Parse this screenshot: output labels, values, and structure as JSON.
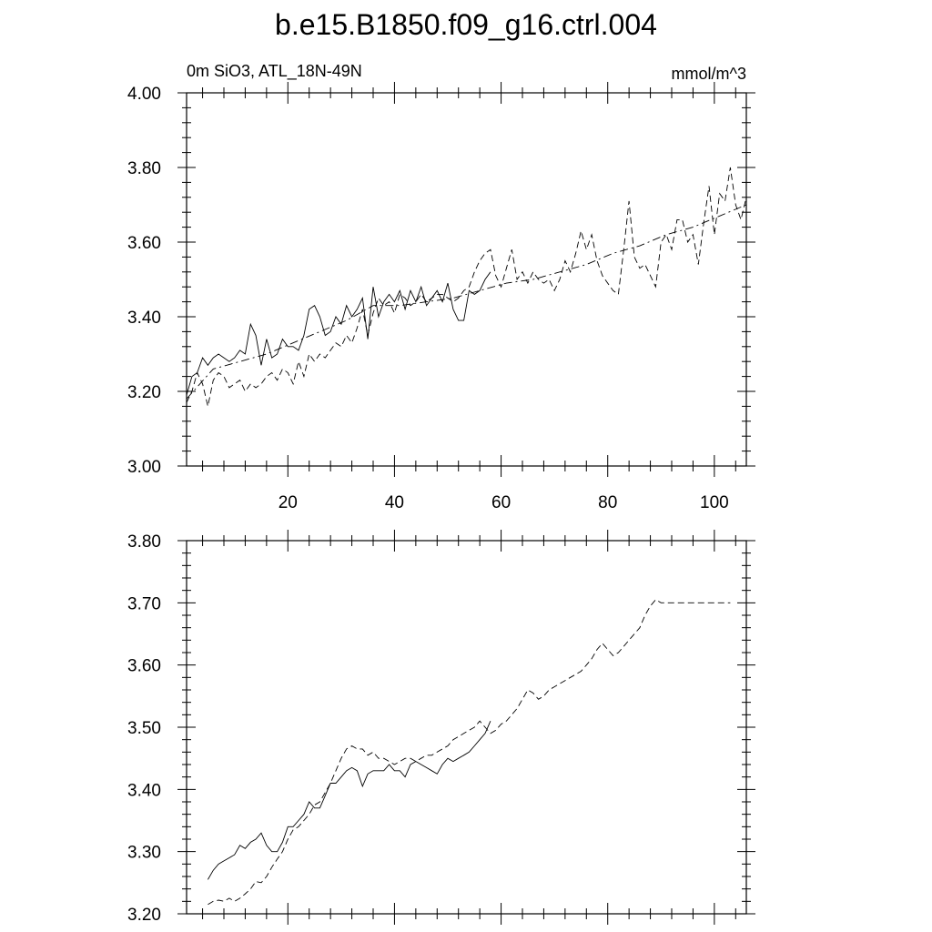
{
  "title": "b.e15.B1850.f09_g16.ctrl.004",
  "chart_data": [
    {
      "type": "line",
      "left_label": "0m SiO3, ATL_18N-49N",
      "right_label": "mmol/m^3",
      "xlim": [
        1,
        106
      ],
      "ylim": [
        3.0,
        4.0
      ],
      "x_ticks": [
        20,
        40,
        60,
        80,
        100
      ],
      "x_tick_labels": [
        "20",
        "40",
        "60",
        "80",
        "100"
      ],
      "y_ticks": [
        3.0,
        3.2,
        3.4,
        3.6,
        3.8,
        4.0
      ],
      "y_tick_labels": [
        "3.00",
        "3.20",
        "3.40",
        "3.60",
        "3.80",
        "4.00"
      ],
      "series": [
        {
          "style": "solid",
          "x": [
            1,
            2,
            3,
            4,
            5,
            6,
            7,
            8,
            9,
            10,
            11,
            12,
            13,
            14,
            15,
            16,
            17,
            18,
            19,
            20,
            21,
            22,
            23,
            24,
            25,
            26,
            27,
            28,
            29,
            30,
            31,
            32,
            33,
            34,
            35,
            36,
            37,
            38,
            39,
            40,
            41,
            42,
            43,
            44,
            45,
            46,
            47,
            48,
            49,
            50,
            51,
            52,
            53,
            54,
            55,
            56,
            57,
            58
          ],
          "values": [
            3.19,
            3.24,
            3.25,
            3.29,
            3.27,
            3.29,
            3.3,
            3.29,
            3.28,
            3.29,
            3.31,
            3.3,
            3.38,
            3.35,
            3.27,
            3.34,
            3.29,
            3.3,
            3.34,
            3.32,
            3.32,
            3.31,
            3.35,
            3.42,
            3.43,
            3.4,
            3.35,
            3.36,
            3.4,
            3.38,
            3.43,
            3.4,
            3.42,
            3.45,
            3.34,
            3.48,
            3.4,
            3.44,
            3.46,
            3.44,
            3.47,
            3.42,
            3.47,
            3.44,
            3.48,
            3.43,
            3.45,
            3.47,
            3.44,
            3.49,
            3.42,
            3.39,
            3.39,
            3.47,
            3.46,
            3.47,
            3.5,
            3.52
          ]
        },
        {
          "style": "dashed",
          "x": [
            1,
            2,
            3,
            4,
            5,
            6,
            7,
            8,
            9,
            10,
            11,
            12,
            13,
            14,
            15,
            16,
            17,
            18,
            19,
            20,
            21,
            22,
            23,
            24,
            25,
            26,
            27,
            28,
            29,
            30,
            31,
            32,
            33,
            34,
            35,
            36,
            37,
            38,
            39,
            40,
            41,
            42,
            43,
            44,
            45,
            46,
            47,
            48,
            49,
            50,
            51,
            52,
            53,
            54,
            55,
            56,
            57,
            58,
            59,
            60,
            61,
            62,
            63,
            64,
            65,
            66,
            67,
            68,
            69,
            70,
            71,
            72,
            73,
            74,
            75,
            76,
            77,
            78,
            79,
            80,
            81,
            82,
            83,
            84,
            85,
            86,
            87,
            88,
            89,
            90,
            91,
            92,
            93,
            94,
            95,
            96,
            97,
            98,
            99,
            100,
            101,
            102,
            103,
            104,
            105,
            106
          ],
          "values": [
            3.17,
            3.2,
            3.25,
            3.22,
            3.16,
            3.23,
            3.25,
            3.24,
            3.21,
            3.22,
            3.23,
            3.2,
            3.22,
            3.21,
            3.22,
            3.24,
            3.25,
            3.23,
            3.26,
            3.25,
            3.22,
            3.28,
            3.24,
            3.3,
            3.28,
            3.3,
            3.29,
            3.31,
            3.33,
            3.32,
            3.35,
            3.33,
            3.37,
            3.42,
            3.35,
            3.41,
            3.45,
            3.43,
            3.44,
            3.41,
            3.46,
            3.45,
            3.43,
            3.44,
            3.46,
            3.44,
            3.45,
            3.46,
            3.46,
            3.45,
            3.44,
            3.45,
            3.47,
            3.48,
            3.52,
            3.55,
            3.57,
            3.58,
            3.51,
            3.48,
            3.53,
            3.58,
            3.5,
            3.52,
            3.49,
            3.52,
            3.5,
            3.49,
            3.5,
            3.47,
            3.5,
            3.55,
            3.52,
            3.57,
            3.63,
            3.58,
            3.62,
            3.55,
            3.51,
            3.49,
            3.47,
            3.46,
            3.58,
            3.71,
            3.56,
            3.53,
            3.54,
            3.51,
            3.48,
            3.6,
            3.62,
            3.58,
            3.66,
            3.66,
            3.6,
            3.62,
            3.54,
            3.65,
            3.75,
            3.62,
            3.73,
            3.71,
            3.8,
            3.7,
            3.66,
            3.72
          ]
        },
        {
          "style": "dash-dot",
          "x": [
            1,
            6,
            11,
            16,
            21,
            26,
            31,
            36,
            41,
            46,
            51,
            56,
            61,
            66,
            71,
            76,
            81,
            86,
            91,
            96,
            101,
            106
          ],
          "values": [
            3.18,
            3.26,
            3.28,
            3.3,
            3.33,
            3.36,
            3.39,
            3.43,
            3.43,
            3.44,
            3.45,
            3.47,
            3.49,
            3.5,
            3.52,
            3.54,
            3.57,
            3.59,
            3.62,
            3.64,
            3.67,
            3.7
          ]
        }
      ]
    },
    {
      "type": "line",
      "xlim": [
        1,
        106
      ],
      "ylim": [
        3.2,
        3.8
      ],
      "x_ticks": [
        20,
        40,
        60,
        80,
        100
      ],
      "y_ticks": [
        3.2,
        3.3,
        3.4,
        3.5,
        3.6,
        3.7,
        3.8
      ],
      "y_tick_labels": [
        "3.20",
        "3.30",
        "3.40",
        "3.50",
        "3.60",
        "3.70",
        "3.80"
      ],
      "series": [
        {
          "style": "solid",
          "x": [
            5,
            6,
            7,
            8,
            9,
            10,
            11,
            12,
            13,
            14,
            15,
            16,
            17,
            18,
            19,
            20,
            21,
            22,
            23,
            24,
            25,
            26,
            27,
            28,
            29,
            30,
            31,
            32,
            33,
            34,
            35,
            36,
            37,
            38,
            39,
            40,
            41,
            42,
            43,
            44,
            45,
            46,
            47,
            48,
            49,
            50,
            51,
            52,
            53,
            54,
            55,
            56,
            57,
            58
          ],
          "values": [
            3.255,
            3.27,
            3.28,
            3.285,
            3.29,
            3.295,
            3.31,
            3.305,
            3.315,
            3.32,
            3.33,
            3.31,
            3.3,
            3.3,
            3.315,
            3.34,
            3.34,
            3.35,
            3.36,
            3.38,
            3.37,
            3.37,
            3.39,
            3.41,
            3.41,
            3.42,
            3.43,
            3.435,
            3.43,
            3.405,
            3.425,
            3.43,
            3.43,
            3.43,
            3.44,
            3.43,
            3.43,
            3.42,
            3.44,
            3.445,
            3.44,
            3.435,
            3.43,
            3.425,
            3.44,
            3.45,
            3.445,
            3.45,
            3.455,
            3.46,
            3.47,
            3.48,
            3.49,
            3.51
          ]
        },
        {
          "style": "dashed",
          "x": [
            5,
            6,
            7,
            8,
            9,
            10,
            11,
            12,
            13,
            14,
            15,
            16,
            17,
            18,
            19,
            20,
            21,
            22,
            23,
            24,
            25,
            26,
            27,
            28,
            29,
            30,
            31,
            32,
            33,
            34,
            35,
            36,
            37,
            38,
            39,
            40,
            41,
            42,
            43,
            44,
            45,
            46,
            47,
            48,
            49,
            50,
            51,
            52,
            53,
            54,
            55,
            56,
            57,
            58,
            59,
            60,
            61,
            62,
            63,
            64,
            65,
            66,
            67,
            68,
            69,
            70,
            71,
            72,
            73,
            74,
            75,
            76,
            77,
            78,
            79,
            80,
            81,
            82,
            83,
            84,
            85,
            86,
            87,
            88,
            89,
            90,
            91,
            92,
            93,
            94,
            95,
            96,
            97,
            98,
            99,
            100,
            101,
            102,
            103
          ],
          "values": [
            3.215,
            3.22,
            3.222,
            3.22,
            3.225,
            3.22,
            3.225,
            3.232,
            3.24,
            3.252,
            3.25,
            3.26,
            3.275,
            3.288,
            3.3,
            3.32,
            3.335,
            3.34,
            3.35,
            3.36,
            3.375,
            3.38,
            3.395,
            3.41,
            3.43,
            3.45,
            3.465,
            3.47,
            3.465,
            3.465,
            3.455,
            3.46,
            3.45,
            3.45,
            3.445,
            3.44,
            3.445,
            3.45,
            3.45,
            3.445,
            3.45,
            3.455,
            3.455,
            3.46,
            3.465,
            3.47,
            3.48,
            3.485,
            3.49,
            3.495,
            3.5,
            3.51,
            3.5,
            3.49,
            3.495,
            3.505,
            3.51,
            3.52,
            3.53,
            3.545,
            3.56,
            3.555,
            3.545,
            3.55,
            3.56,
            3.565,
            3.57,
            3.575,
            3.58,
            3.585,
            3.59,
            3.6,
            3.61,
            3.625,
            3.635,
            3.625,
            3.615,
            3.62,
            3.63,
            3.64,
            3.65,
            3.66,
            3.68,
            3.695,
            3.705,
            3.7,
            3.7,
            3.7,
            3.7,
            3.7,
            3.7,
            3.7,
            3.7,
            3.7,
            3.7,
            3.7,
            3.7,
            3.7,
            3.7
          ]
        }
      ]
    }
  ]
}
